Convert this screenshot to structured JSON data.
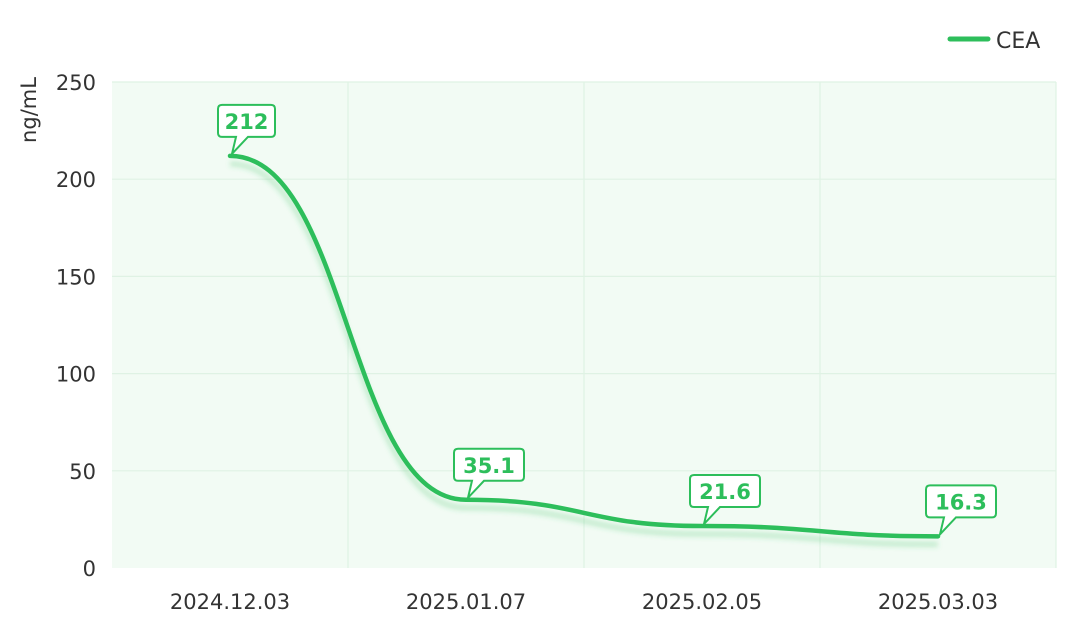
{
  "chart_data": {
    "type": "line",
    "categories": [
      "2024.12.03",
      "2025.01.07",
      "2025.02.05",
      "2025.03.03"
    ],
    "series": [
      {
        "name": "CEA",
        "values": [
          212,
          35.1,
          21.6,
          16.3
        ],
        "color": "#2DBE5B"
      }
    ],
    "data_labels": [
      "212",
      "35.1",
      "21.6",
      "16.3"
    ],
    "ylabel": "ng/mL",
    "xlabel": "",
    "ylim": [
      0,
      250
    ],
    "yticks": [
      0,
      50,
      100,
      150,
      200,
      250
    ],
    "ytick_labels": [
      "0",
      "50",
      "100",
      "150",
      "200",
      "250"
    ],
    "grid": true,
    "plot_background": "#F2FBF4",
    "grid_color": "#DFF2E4",
    "smooth": true,
    "shadow": true,
    "legend": {
      "position": "top-right",
      "label": "CEA"
    }
  }
}
